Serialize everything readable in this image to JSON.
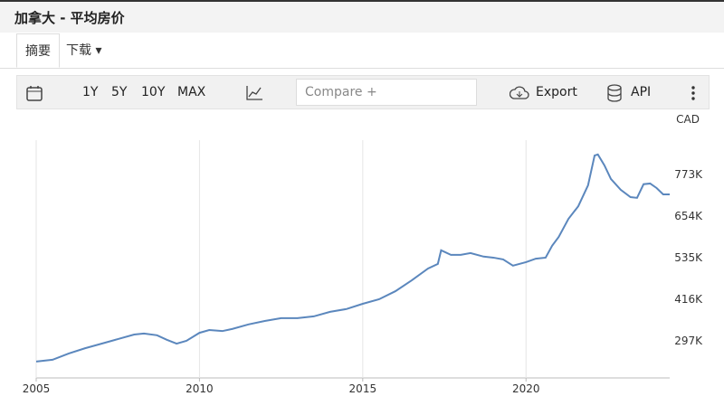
{
  "header": {
    "title": "加拿大 - 平均房价"
  },
  "tabs": [
    "摘要",
    "下载"
  ],
  "toolbar": {
    "ranges": [
      "1Y",
      "5Y",
      "10Y",
      "MAX"
    ],
    "compare": "Compare +",
    "export": "Export",
    "api": "API"
  },
  "chart_data": {
    "type": "line",
    "y_unit": "CAD",
    "x": [
      2005.0,
      2005.5,
      2006.0,
      2006.5,
      2007.0,
      2007.5,
      2008.0,
      2008.3,
      2008.7,
      2009.0,
      2009.3,
      2009.6,
      2010.0,
      2010.3,
      2010.7,
      2011.0,
      2011.5,
      2012.0,
      2012.5,
      2013.0,
      2013.5,
      2014.0,
      2014.5,
      2015.0,
      2015.5,
      2016.0,
      2016.5,
      2017.0,
      2017.3,
      2017.4,
      2017.7,
      2018.0,
      2018.3,
      2018.7,
      2019.0,
      2019.3,
      2019.6,
      2020.0,
      2020.3,
      2020.6,
      2020.8,
      2021.0,
      2021.3,
      2021.6,
      2021.9,
      2022.1,
      2022.2,
      2022.4,
      2022.6,
      2022.9,
      2023.2,
      2023.4,
      2023.6,
      2023.8,
      2024.0,
      2024.2,
      2024.4
    ],
    "series": [
      {
        "color": "#5b87bd",
        "values": [
          238,
          243,
          261,
          276,
          289,
          302,
          315,
          318,
          313,
          300,
          289,
          297,
          320,
          328,
          325,
          331,
          344,
          354,
          362,
          362,
          367,
          380,
          388,
          403,
          416,
          439,
          470,
          504,
          517,
          556,
          543,
          543,
          548,
          538,
          535,
          530,
          512,
          522,
          532,
          535,
          569,
          594,
          646,
          682,
          742,
          827,
          830,
          799,
          760,
          729,
          708,
          706,
          745,
          747,
          734,
          716,
          716
        ]
      }
    ],
    "xlim": [
      2005,
      2024.4
    ],
    "xticks": [
      2005,
      2010,
      2015,
      2020
    ],
    "ylim": [
      191,
      871
    ],
    "yticks": [
      {
        "value": 297,
        "label": "297K"
      },
      {
        "value": 416,
        "label": "416K"
      },
      {
        "value": 535,
        "label": "535K"
      },
      {
        "value": 654,
        "label": "654K"
      },
      {
        "value": 773,
        "label": "773K"
      }
    ],
    "grid": true
  }
}
